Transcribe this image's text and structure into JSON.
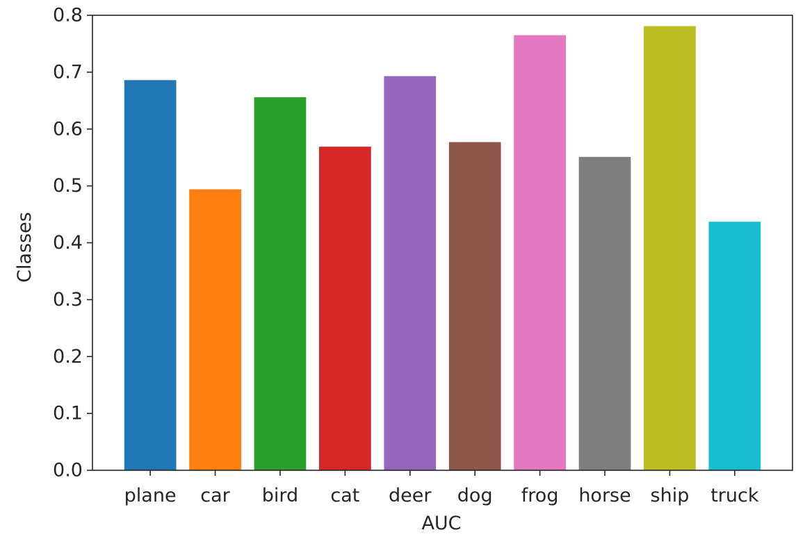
{
  "chart_data": {
    "type": "bar",
    "title": "",
    "xlabel": "AUC",
    "ylabel": "Classes",
    "categories": [
      "plane",
      "car",
      "bird",
      "cat",
      "deer",
      "dog",
      "frog",
      "horse",
      "ship",
      "truck"
    ],
    "values": [
      0.686,
      0.494,
      0.656,
      0.569,
      0.693,
      0.577,
      0.765,
      0.551,
      0.781,
      0.437
    ],
    "colors": [
      "#1f77b4",
      "#ff7f0e",
      "#2ca02c",
      "#d62728",
      "#9467bd",
      "#8c564b",
      "#e377c2",
      "#7f7f7f",
      "#bcbd22",
      "#17becf"
    ],
    "ylim": [
      0,
      0.8
    ],
    "yticks": [
      "0.0",
      "0.1",
      "0.2",
      "0.3",
      "0.4",
      "0.5",
      "0.6",
      "0.7",
      "0.8"
    ],
    "grid": false,
    "legend": "none"
  }
}
